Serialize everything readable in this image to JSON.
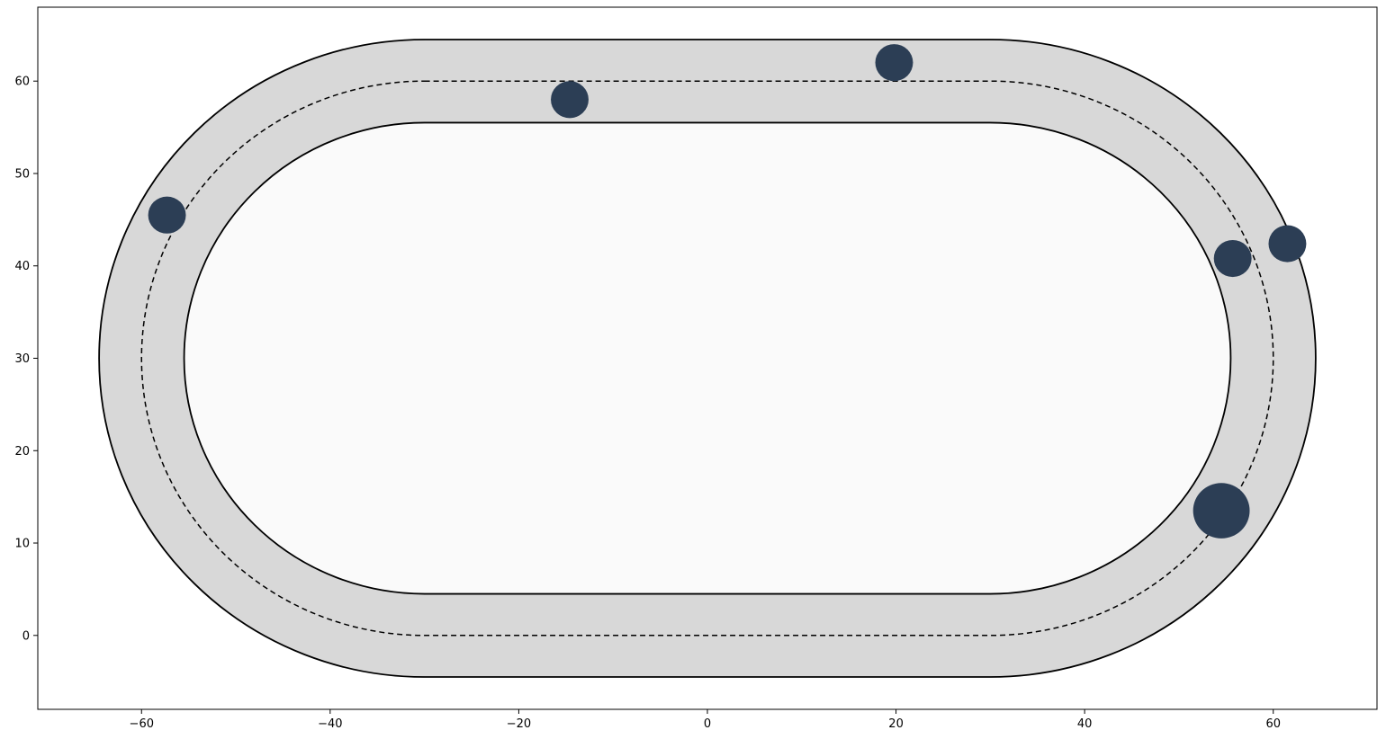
{
  "chart_data": {
    "type": "scatter",
    "title": "",
    "xlabel": "",
    "ylabel": "",
    "xlim": [
      -71,
      71
    ],
    "ylim": [
      -8,
      68
    ],
    "x_ticks": [
      -60,
      -40,
      -20,
      0,
      20,
      40,
      60
    ],
    "x_tick_labels": [
      "−60",
      "−40",
      "−20",
      "0",
      "20",
      "40",
      "60"
    ],
    "y_ticks": [
      0,
      10,
      20,
      30,
      40,
      50,
      60
    ],
    "y_tick_labels": [
      "0",
      "10",
      "20",
      "30",
      "40",
      "50",
      "60"
    ],
    "grid": false,
    "legend": "none",
    "track": {
      "straight_x": [
        -30,
        30
      ],
      "center_y": 30,
      "centerline_radius": 30,
      "half_width": 4.5,
      "track_color": "#d8d8d8",
      "infield_color": "#fafafa",
      "edge_color": "#000000"
    },
    "points": [
      {
        "x": -57.3,
        "y": 45.5,
        "r": 2.0
      },
      {
        "x": -14.6,
        "y": 58.0,
        "r": 2.0
      },
      {
        "x": 19.8,
        "y": 62.0,
        "r": 2.0
      },
      {
        "x": 55.7,
        "y": 40.8,
        "r": 2.0
      },
      {
        "x": 61.5,
        "y": 42.4,
        "r": 2.0
      },
      {
        "x": 54.5,
        "y": 13.5,
        "r": 3.0
      }
    ],
    "point_color": "#2c3e55"
  }
}
